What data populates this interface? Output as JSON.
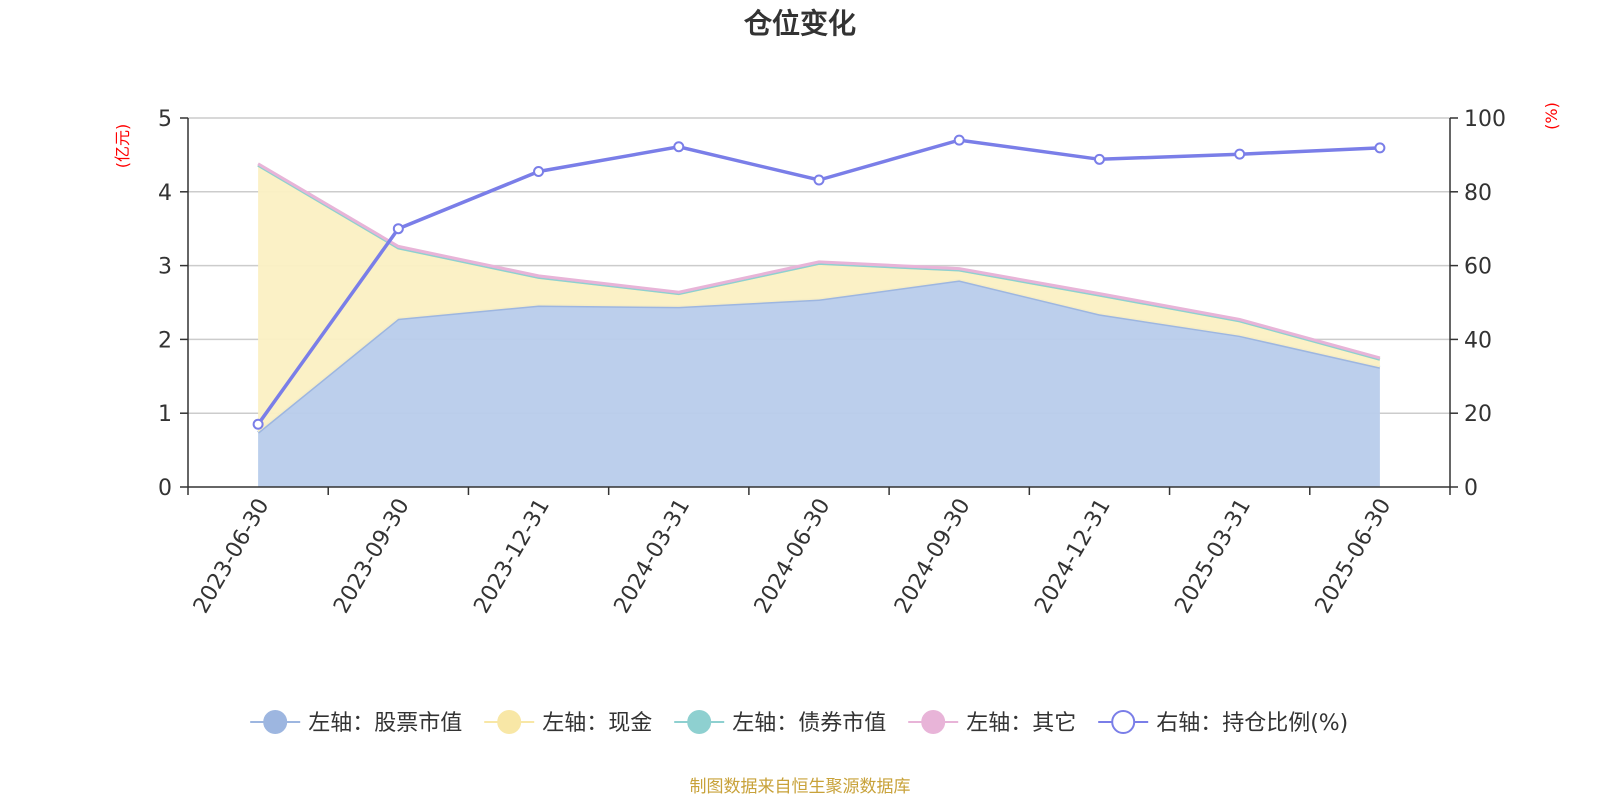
{
  "chart_data": {
    "type": "area",
    "title": "仓位变化",
    "categories": [
      "2023-06-30",
      "2023-09-30",
      "2023-12-31",
      "2024-03-31",
      "2024-06-30",
      "2024-09-30",
      "2024-12-31",
      "2025-03-31",
      "2025-06-30"
    ],
    "left_axis": {
      "unit": "(亿元)",
      "ylim": [
        0,
        5
      ],
      "ticks": [
        0,
        1,
        2,
        3,
        4,
        5
      ]
    },
    "right_axis": {
      "unit": "(%)",
      "ylim": [
        0,
        100
      ],
      "ticks": [
        0,
        20,
        40,
        60,
        80,
        100
      ]
    },
    "grid": true,
    "legend_position": "bottom",
    "series": [
      {
        "name": "左轴：股票市值",
        "axis": "left",
        "kind": "area-stacked",
        "color": "#9db6e0",
        "fill": "#b8cceb",
        "values": [
          0.74,
          2.28,
          2.46,
          2.44,
          2.54,
          2.8,
          2.34,
          2.05,
          1.62
        ]
      },
      {
        "name": "左轴：现金",
        "axis": "left",
        "kind": "area-stacked",
        "color": "#f8e7a6",
        "fill": "#fbf0c3",
        "values": [
          3.62,
          0.96,
          0.38,
          0.18,
          0.49,
          0.14,
          0.26,
          0.2,
          0.11
        ]
      },
      {
        "name": "左轴：债券市值",
        "axis": "left",
        "kind": "area-stacked",
        "color": "#8ed0d0",
        "fill": "#8ed0d0",
        "values": [
          0,
          0,
          0,
          0,
          0,
          0,
          0,
          0,
          0
        ]
      },
      {
        "name": "左轴：其它",
        "axis": "left",
        "kind": "area-stacked",
        "color": "#e8b4d8",
        "fill": "#e8b4d8",
        "values": [
          0.02,
          0.02,
          0.02,
          0.02,
          0.02,
          0.02,
          0.02,
          0.02,
          0.02
        ]
      },
      {
        "name": "右轴：持仓比例(%)",
        "axis": "right",
        "kind": "line",
        "color": "#7a7ee8",
        "values": [
          17,
          70,
          85.5,
          92.2,
          83.2,
          94,
          88.8,
          90.2,
          91.9
        ]
      }
    ]
  },
  "footer": {
    "source": "制图数据来自恒生聚源数据库"
  }
}
